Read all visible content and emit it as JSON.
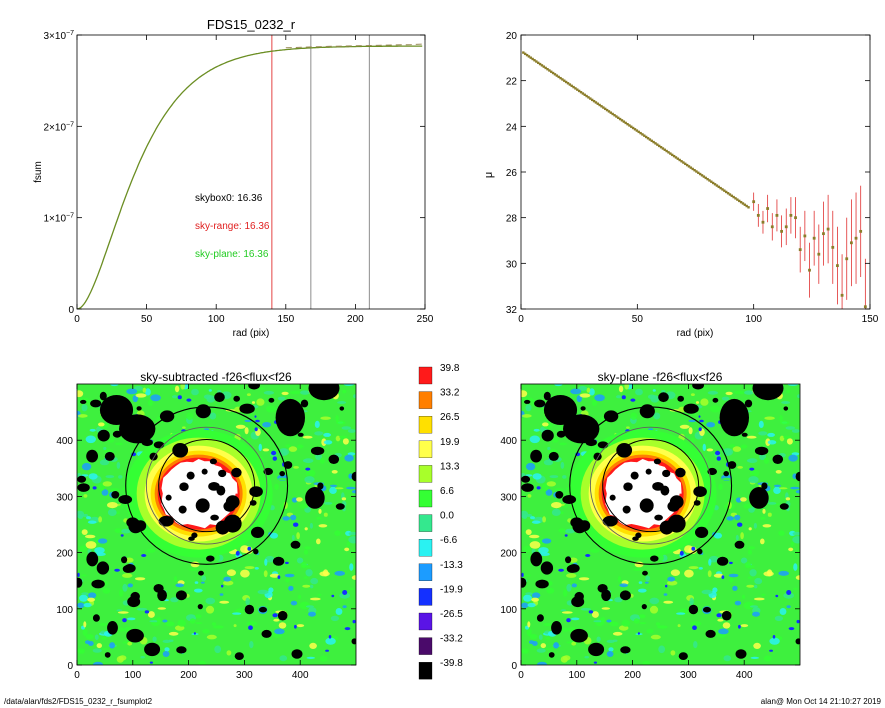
{
  "footer": {
    "path": "/data/alan/fds2/FDS15_0232_r_fsumplot2",
    "stamp": "alan@  Mon Oct 14 21:10:27 2019"
  },
  "chart_data": [
    {
      "id": "fsum",
      "type": "line",
      "title": "FDS15_0232_r",
      "xlabel": "rad (pix)",
      "ylabel": "fsum",
      "xlim": [
        0,
        250
      ],
      "ylim": [
        0,
        3e-07
      ],
      "xticks": [
        0,
        50,
        100,
        150,
        200,
        250
      ],
      "yticks": [
        {
          "value": 0,
          "mantissa": "0",
          "exp": ""
        },
        {
          "value": 1e-07,
          "mantissa": "1×10",
          "exp": "−7"
        },
        {
          "value": 2e-07,
          "mantissa": "2×10",
          "exp": "−7"
        },
        {
          "value": 3e-07,
          "mantissa": "3×10",
          "exp": "−7"
        }
      ],
      "curve": {
        "asymptote": 2.88e-07,
        "scale_radius": 24,
        "x_start": 0,
        "x_end": 248
      },
      "dashed_tail": {
        "x": [
          150,
          180,
          210,
          240,
          248
        ],
        "y": [
          2.86e-07,
          2.875e-07,
          2.885e-07,
          2.895e-07,
          2.9e-07
        ]
      },
      "vlines": [
        {
          "x": 140,
          "color": "#e03030"
        },
        {
          "x": 168,
          "color": "#808080"
        },
        {
          "x": 210,
          "color": "#808080"
        }
      ],
      "annotations": [
        {
          "text": "skybox0: 16.36",
          "color": "#000000"
        },
        {
          "text": "sky-range: 16.36",
          "color": "#e02020"
        },
        {
          "text": "sky-plane: 16.36",
          "color": "#22cc22"
        }
      ],
      "colors": {
        "curve": "#6b8e23",
        "dashed": "#9a8a5a"
      }
    },
    {
      "id": "mu",
      "type": "scatter",
      "xlabel": "rad (pix)",
      "ylabel": "μ",
      "xlim": [
        0,
        150
      ],
      "ylim": [
        20,
        32
      ],
      "y_inverted": true,
      "xticks": [
        0,
        50,
        100,
        150
      ],
      "yticks": [
        20,
        22,
        24,
        26,
        28,
        30,
        32
      ],
      "profile": {
        "mu_at_zero": 20.7,
        "slope_per_pix": 0.07,
        "x_start": 1,
        "x_end": 98,
        "step": 0.8
      },
      "outer_points": {
        "x": [
          100,
          102,
          104,
          106,
          108,
          110,
          112,
          114,
          116,
          118,
          120,
          122,
          124,
          126,
          128,
          130,
          132,
          134,
          136,
          138,
          140,
          142,
          144,
          146,
          148
        ],
        "y": [
          27.3,
          27.9,
          28.2,
          27.6,
          28.4,
          27.9,
          28.6,
          28.4,
          27.9,
          28.0,
          29.4,
          28.8,
          30.3,
          28.9,
          29.6,
          28.7,
          28.5,
          29.3,
          30.1,
          31.4,
          29.8,
          29.1,
          28.9,
          28.6,
          31.9
        ],
        "err": [
          0.4,
          0.5,
          0.5,
          0.6,
          0.6,
          0.7,
          0.7,
          0.8,
          0.8,
          0.9,
          1.0,
          1.1,
          1.2,
          1.2,
          1.3,
          1.4,
          1.5,
          1.6,
          1.7,
          1.8,
          1.8,
          1.9,
          2.0,
          2.0,
          2.1
        ]
      },
      "colors": {
        "point": "#8b7d2a",
        "error": "#e03030"
      }
    },
    {
      "id": "map-left",
      "type": "heatmap",
      "title": "sky-subtracted -f26<flux<f26",
      "xlim": [
        0,
        500
      ],
      "ylim": [
        0,
        500
      ],
      "xticks": [
        0,
        100,
        200,
        300,
        400
      ],
      "yticks": [
        0,
        100,
        200,
        300,
        400
      ]
    },
    {
      "id": "map-right",
      "type": "heatmap",
      "title": "sky-plane -f26<flux<f26",
      "xlim": [
        0,
        500
      ],
      "ylim": [
        0,
        500
      ],
      "xticks": [
        0,
        100,
        200,
        300,
        400
      ],
      "yticks": [
        0,
        100,
        200,
        300,
        400
      ]
    },
    {
      "id": "colorbar",
      "type": "table",
      "levels": [
        {
          "label": "39.8",
          "color": "#ff1a1a"
        },
        {
          "label": "33.2",
          "color": "#ff7f00"
        },
        {
          "label": "26.5",
          "color": "#ffe000"
        },
        {
          "label": "19.9",
          "color": "#ffff4a"
        },
        {
          "label": "13.3",
          "color": "#a8ff2a"
        },
        {
          "label": "6.6",
          "color": "#34ff34"
        },
        {
          "label": "0.0",
          "color": "#34e88e"
        },
        {
          "label": "-6.6",
          "color": "#2af2f2"
        },
        {
          "label": "-13.3",
          "color": "#1c9cff"
        },
        {
          "label": "-19.9",
          "color": "#1430ff"
        },
        {
          "label": "-26.5",
          "color": "#5a14e6"
        },
        {
          "label": "-33.2",
          "color": "#4a0a6a"
        },
        {
          "label": "-39.8",
          "color": "#000000"
        }
      ]
    }
  ]
}
